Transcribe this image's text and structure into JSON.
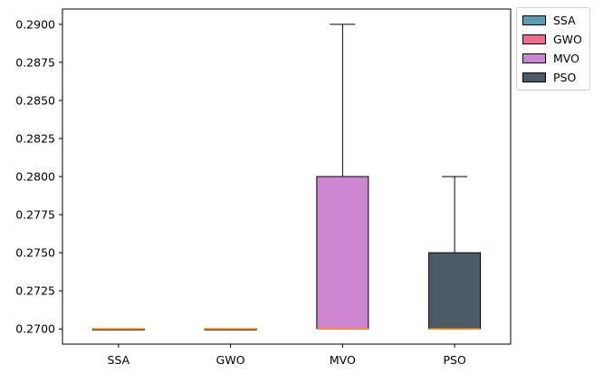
{
  "chart_data": {
    "type": "boxplot",
    "title": "",
    "xlabel": "",
    "ylabel": "",
    "ylim": [
      0.269,
      0.291
    ],
    "yticks": [
      "0.2700",
      "0.2725",
      "0.2750",
      "0.2775",
      "0.2800",
      "0.2825",
      "0.2850",
      "0.2875",
      "0.2900"
    ],
    "ytick_values": [
      0.27,
      0.2725,
      0.275,
      0.2775,
      0.28,
      0.2825,
      0.285,
      0.2875,
      0.29
    ],
    "categories": [
      "SSA",
      "GWO",
      "MVO",
      "PSO"
    ],
    "series": [
      {
        "name": "SSA",
        "color": "#5a9bb5",
        "whisker_low": 0.27,
        "q1": 0.27,
        "median": 0.27,
        "q3": 0.27,
        "whisker_high": 0.27
      },
      {
        "name": "GWO",
        "color": "#f06a8f",
        "whisker_low": 0.27,
        "q1": 0.27,
        "median": 0.27,
        "q3": 0.27,
        "whisker_high": 0.27
      },
      {
        "name": "MVO",
        "color": "#cf86d2",
        "whisker_low": 0.27,
        "q1": 0.27,
        "median": 0.27,
        "q3": 0.28,
        "whisker_high": 0.29
      },
      {
        "name": "PSO",
        "color": "#4a5a66",
        "whisker_low": 0.27,
        "q1": 0.27,
        "median": 0.27,
        "q3": 0.275,
        "whisker_high": 0.28
      }
    ],
    "median_color": "#ff8c1a",
    "legend": {
      "position": "outside-top-right",
      "entries": [
        "SSA",
        "GWO",
        "MVO",
        "PSO"
      ]
    }
  }
}
